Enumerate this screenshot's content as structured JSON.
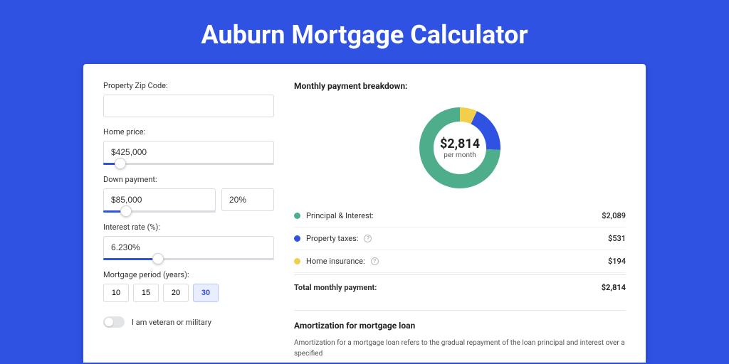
{
  "title": "Auburn Mortgage Calculator",
  "form": {
    "zip": {
      "label": "Property Zip Code:",
      "value": ""
    },
    "homePrice": {
      "label": "Home price:",
      "value": "$425,000",
      "sliderPercent": 10
    },
    "downPayment": {
      "label": "Down payment:",
      "amount": "$85,000",
      "percent": "20%",
      "sliderPercent": 20
    },
    "interest": {
      "label": "Interest rate (%):",
      "value": "6.230%",
      "sliderPercent": 32
    },
    "mortgagePeriod": {
      "label": "Mortgage period (years):",
      "options": [
        "10",
        "15",
        "20",
        "30"
      ],
      "activeIndex": 3
    },
    "veteran": {
      "label": "I am veteran or military",
      "checked": false
    }
  },
  "breakdown": {
    "title": "Monthly payment breakdown:",
    "totalAmount": "$2,814",
    "perMonth": "per month",
    "items": [
      {
        "label": "Principal & Interest:",
        "value": "$2,089",
        "color": "#4eae8c",
        "pct": 0.742,
        "hasInfo": false
      },
      {
        "label": "Property taxes:",
        "value": "$531",
        "color": "#3052e3",
        "pct": 0.189,
        "hasInfo": true
      },
      {
        "label": "Home insurance:",
        "value": "$194",
        "color": "#f2ce4a",
        "pct": 0.069,
        "hasInfo": true
      }
    ],
    "totalRow": {
      "label": "Total monthly payment:",
      "value": "$2,814"
    }
  },
  "amortization": {
    "title": "Amortization for mortgage loan",
    "text": "Amortization for a mortgage loan refers to the gradual repayment of the loan principal and interest over a specified"
  },
  "colors": {
    "pageBg": "#3052e3",
    "cardBg": "#ffffff",
    "accent": "#3052e3",
    "border": "#d8dbe0"
  }
}
